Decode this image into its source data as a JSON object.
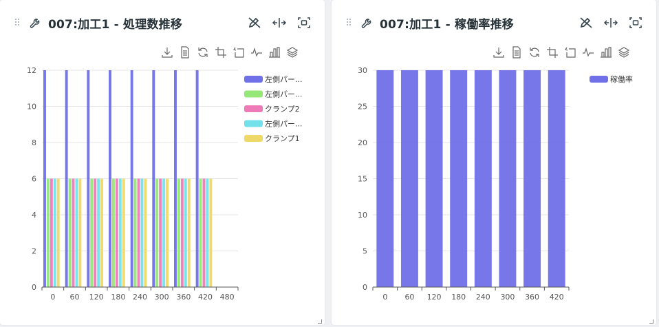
{
  "panels": [
    {
      "title": "007:加工1 - 処理数推移",
      "header_icons": [
        "edit-off-icon",
        "resize-horizontal-icon",
        "fullscreen-icon"
      ],
      "toolbar": [
        "download-icon",
        "data-view-icon",
        "restore-icon",
        "zoom-select-icon",
        "zoom-back-icon",
        "line-chart-icon",
        "bar-chart-icon",
        "stack-icon"
      ]
    },
    {
      "title": "007:加工1 - 稼働率推移",
      "header_icons": [
        "edit-off-icon",
        "resize-horizontal-icon",
        "fullscreen-icon"
      ],
      "toolbar": [
        "download-icon",
        "data-view-icon",
        "restore-icon",
        "zoom-select-icon",
        "zoom-back-icon",
        "line-chart-icon",
        "bar-chart-icon",
        "stack-icon"
      ]
    }
  ],
  "colors": {
    "blue": "#7070e8",
    "green": "#95e878",
    "pink": "#ee7ab8",
    "cyan": "#73e1ea",
    "yellow": "#eed868"
  },
  "chart_data": [
    {
      "type": "bar",
      "categories": [
        "0",
        "60",
        "120",
        "180",
        "240",
        "300",
        "360",
        "420",
        "480"
      ],
      "ylim": [
        0,
        12
      ],
      "yticks": [
        "0",
        "2",
        "4",
        "6",
        "8",
        "10",
        "12"
      ],
      "legend": "right",
      "grid": true,
      "series": [
        {
          "name": "左側パー...",
          "color": "#7070e8",
          "values": [
            12,
            12,
            12,
            12,
            12,
            12,
            12,
            12,
            0
          ]
        },
        {
          "name": "左側パー...",
          "color": "#95e878",
          "values": [
            6,
            6,
            6,
            6,
            6,
            6,
            6,
            6,
            0
          ]
        },
        {
          "name": "クランプ2",
          "color": "#ee7ab8",
          "values": [
            6,
            6,
            6,
            6,
            6,
            6,
            6,
            6,
            0
          ]
        },
        {
          "name": "左側パー...",
          "color": "#73e1ea",
          "values": [
            6,
            6,
            6,
            6,
            6,
            6,
            6,
            6,
            0
          ]
        },
        {
          "name": "クランプ1",
          "color": "#eed868",
          "values": [
            6,
            6,
            6,
            6,
            6,
            6,
            6,
            6,
            0
          ]
        }
      ]
    },
    {
      "type": "bar",
      "categories": [
        "0",
        "60",
        "120",
        "180",
        "240",
        "300",
        "360",
        "420"
      ],
      "ylim": [
        0,
        30
      ],
      "yticks": [
        "0",
        "5",
        "10",
        "15",
        "20",
        "25",
        "30"
      ],
      "legend": "right",
      "grid": true,
      "series": [
        {
          "name": "稼働率",
          "color": "#7070e8",
          "values": [
            30,
            30,
            30,
            30,
            30,
            30,
            30,
            30
          ]
        }
      ]
    }
  ]
}
